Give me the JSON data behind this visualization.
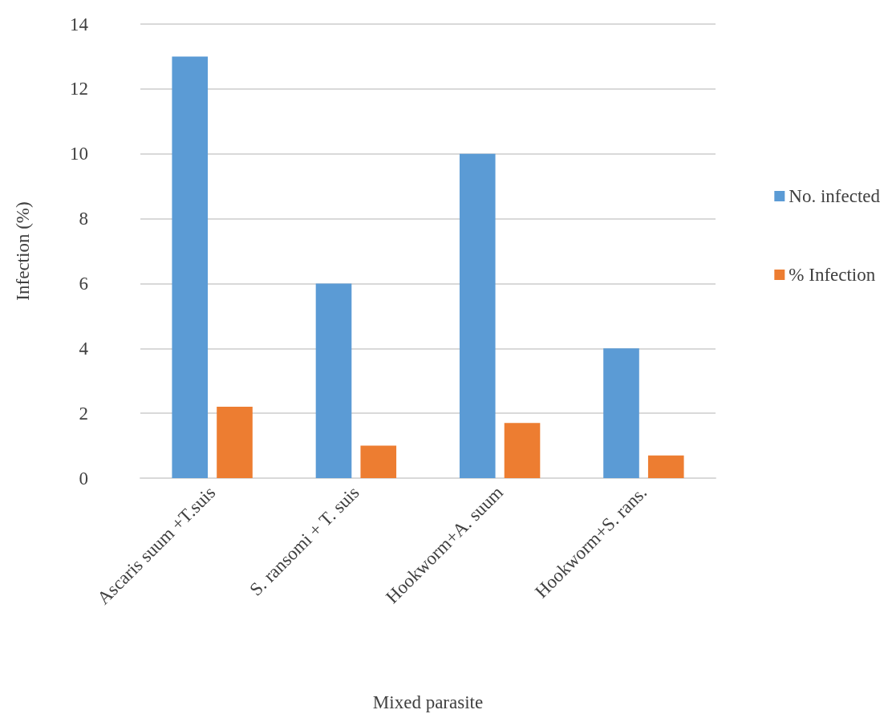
{
  "chart_data": {
    "type": "bar",
    "xlabel": "Mixed parasite",
    "ylabel": "Infection (%)",
    "categories": [
      "Ascaris suum +T.suis",
      "S. ransomi + T. suis",
      "Hookworm+A. suum",
      "Hookworm+S. rans."
    ],
    "series": [
      {
        "name": "No. infected",
        "color": "#5b9bd5",
        "values": [
          13,
          6,
          10,
          4
        ]
      },
      {
        "name": "% Infection",
        "color": "#ed7d31",
        "values": [
          2.2,
          1.0,
          1.7,
          0.7
        ]
      }
    ],
    "ylim": [
      0,
      14
    ],
    "yticks": [
      0,
      2,
      4,
      6,
      8,
      10,
      12,
      14
    ],
    "grid": "y",
    "legend": "right"
  }
}
